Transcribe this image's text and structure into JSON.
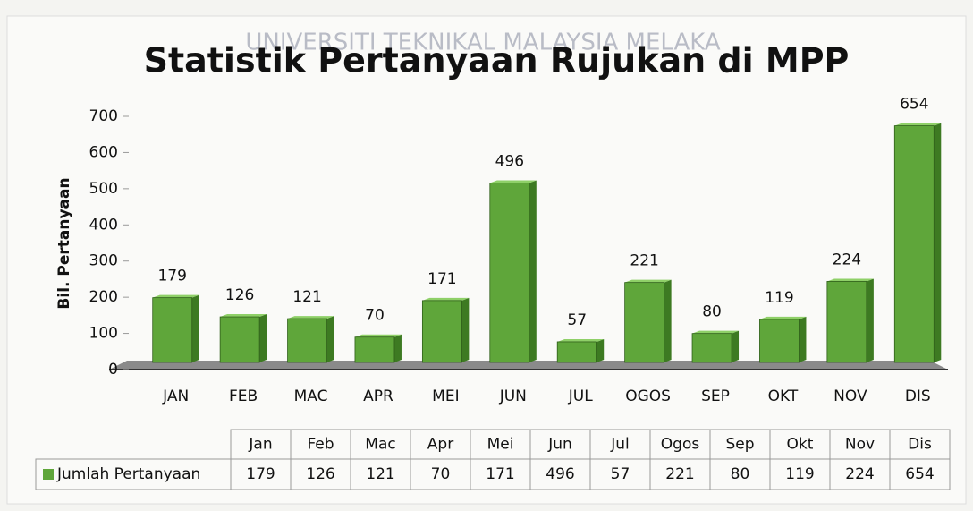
{
  "watermark": "UNIVERSITI TEKNIKAL MALAYSIA MELAKA",
  "chart_data": {
    "type": "bar",
    "title": "Statistik Pertanyaan Rujukan di MPP",
    "y_label": "Bil. Pertanyaan",
    "categories": [
      "JAN",
      "FEB",
      "MAC",
      "APR",
      "MEI",
      "JUN",
      "JUL",
      "OGOS",
      "SEP",
      "OKT",
      "NOV",
      "DIS"
    ],
    "series": [
      {
        "name": "Jumlah Pertanyaan",
        "color": "#5fa63a",
        "values": [
          179,
          126,
          121,
          70,
          171,
          496,
          57,
          221,
          80,
          119,
          224,
          654
        ]
      }
    ],
    "ylim": [
      0,
      700
    ],
    "yticks": [
      0,
      100,
      200,
      300,
      400,
      500,
      600,
      700
    ],
    "table_columns": [
      "Jan",
      "Feb",
      "Mac",
      "Apr",
      "Mei",
      "Jun",
      "Jul",
      "Ogos",
      "Sep",
      "Okt",
      "Nov",
      "Dis"
    ]
  }
}
